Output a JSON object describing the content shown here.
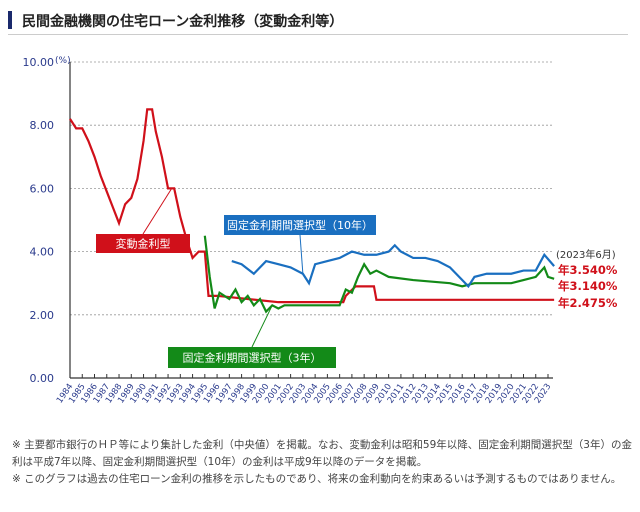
{
  "title": "民間金融機関の住宅ローン金利推移（変動金利等）",
  "chart_data": {
    "type": "line",
    "title": "民間金融機関の住宅ローン金利推移（変動金利等）",
    "ylabel": "(%)",
    "ylim": [
      0,
      10
    ],
    "yticks": [
      "0.00",
      "2.00",
      "4.00",
      "6.00",
      "8.00",
      "10.00"
    ],
    "xlim": [
      1984,
      2023
    ],
    "xticks": [
      "1984",
      "1985",
      "1986",
      "1987",
      "1988",
      "1989",
      "1990",
      "1991",
      "1992",
      "1993",
      "1994",
      "1995",
      "1996",
      "1997",
      "1998",
      "1999",
      "2000",
      "2001",
      "2002",
      "2003",
      "2004",
      "2005",
      "2006",
      "2007",
      "2008",
      "2009",
      "2010",
      "2011",
      "2012",
      "2013",
      "2014",
      "2015",
      "2016",
      "2017",
      "2018",
      "2019",
      "2020",
      "2021",
      "2022",
      "2023"
    ],
    "grid": "horizontal dashed",
    "date_note": "(2023年6月)",
    "series": [
      {
        "name": "変動金利型",
        "color": "#d0101a",
        "end_label": "年2.475%",
        "points": [
          [
            1984,
            8.2
          ],
          [
            1984.5,
            7.9
          ],
          [
            1985,
            7.9
          ],
          [
            1985.5,
            7.5
          ],
          [
            1986,
            7.0
          ],
          [
            1986.5,
            6.4
          ],
          [
            1987,
            5.9
          ],
          [
            1987.5,
            5.4
          ],
          [
            1988,
            4.9
          ],
          [
            1988.5,
            5.5
          ],
          [
            1989,
            5.7
          ],
          [
            1989.5,
            6.3
          ],
          [
            1990,
            7.5
          ],
          [
            1990.3,
            8.5
          ],
          [
            1990.7,
            8.5
          ],
          [
            1991,
            7.8
          ],
          [
            1991.5,
            7.0
          ],
          [
            1992,
            6.0
          ],
          [
            1992.5,
            6.0
          ],
          [
            1993,
            5.1
          ],
          [
            1993.5,
            4.4
          ],
          [
            1994,
            3.8
          ],
          [
            1994.5,
            4.0
          ],
          [
            1995,
            4.0
          ],
          [
            1995.3,
            2.6
          ],
          [
            1996,
            2.6
          ],
          [
            2001,
            2.4
          ],
          [
            2006.3,
            2.4
          ],
          [
            2006.5,
            2.6
          ],
          [
            2007.3,
            2.9
          ],
          [
            2008.8,
            2.9
          ],
          [
            2009,
            2.475
          ],
          [
            2023.5,
            2.475
          ]
        ]
      },
      {
        "name": "固定金利期間選択型（3年）",
        "color": "#138a18",
        "end_label": "年3.140%",
        "points": [
          [
            1995,
            4.5
          ],
          [
            1995.4,
            3.2
          ],
          [
            1995.8,
            2.2
          ],
          [
            1996.2,
            2.7
          ],
          [
            1997,
            2.5
          ],
          [
            1997.5,
            2.8
          ],
          [
            1998,
            2.4
          ],
          [
            1998.5,
            2.6
          ],
          [
            1999,
            2.3
          ],
          [
            1999.5,
            2.5
          ],
          [
            2000,
            2.1
          ],
          [
            2000.5,
            2.3
          ],
          [
            2001,
            2.2
          ],
          [
            2001.5,
            2.3
          ],
          [
            2006,
            2.3
          ],
          [
            2006.5,
            2.8
          ],
          [
            2007,
            2.7
          ],
          [
            2007.5,
            3.2
          ],
          [
            2008,
            3.6
          ],
          [
            2008.5,
            3.3
          ],
          [
            2009,
            3.4
          ],
          [
            2010,
            3.2
          ],
          [
            2012,
            3.1
          ],
          [
            2015,
            3.0
          ],
          [
            2016,
            2.9
          ],
          [
            2017,
            3.0
          ],
          [
            2020,
            3.0
          ],
          [
            2021,
            3.1
          ],
          [
            2022,
            3.2
          ],
          [
            2022.7,
            3.5
          ],
          [
            2023,
            3.2
          ],
          [
            2023.5,
            3.14
          ]
        ]
      },
      {
        "name": "固定金利期間選択型（10年）",
        "color": "#1a6fc0",
        "end_label": "年3.540%",
        "points": [
          [
            1997.2,
            3.7
          ],
          [
            1998,
            3.6
          ],
          [
            1999,
            3.3
          ],
          [
            2000,
            3.7
          ],
          [
            2001,
            3.6
          ],
          [
            2002,
            3.5
          ],
          [
            2003,
            3.3
          ],
          [
            2003.5,
            3.0
          ],
          [
            2004,
            3.6
          ],
          [
            2005,
            3.7
          ],
          [
            2006,
            3.8
          ],
          [
            2007,
            4.0
          ],
          [
            2008,
            3.9
          ],
          [
            2009,
            3.9
          ],
          [
            2010,
            4.0
          ],
          [
            2010.5,
            4.2
          ],
          [
            2011,
            4.0
          ],
          [
            2012,
            3.8
          ],
          [
            2013,
            3.8
          ],
          [
            2014,
            3.7
          ],
          [
            2015,
            3.5
          ],
          [
            2016,
            3.1
          ],
          [
            2016.5,
            2.9
          ],
          [
            2017,
            3.2
          ],
          [
            2018,
            3.3
          ],
          [
            2019,
            3.3
          ],
          [
            2020,
            3.3
          ],
          [
            2021,
            3.4
          ],
          [
            2022,
            3.4
          ],
          [
            2022.7,
            3.9
          ],
          [
            2023.5,
            3.54
          ]
        ]
      }
    ]
  },
  "notes": [
    "※ 主要都市銀行のＨＰ等により集計した金利（中央値）を掲載。なお、変動金利は昭和59年以降、固定金利期間選択型（3年）の金利は平成7年以降、固定金利期間選択型（10年）の金利は平成9年以降のデータを掲載。",
    "※ このグラフは過去の住宅ローン金利の推移を示したものであり、将来の金利動向を約束あるいは予測するものではありません。"
  ]
}
